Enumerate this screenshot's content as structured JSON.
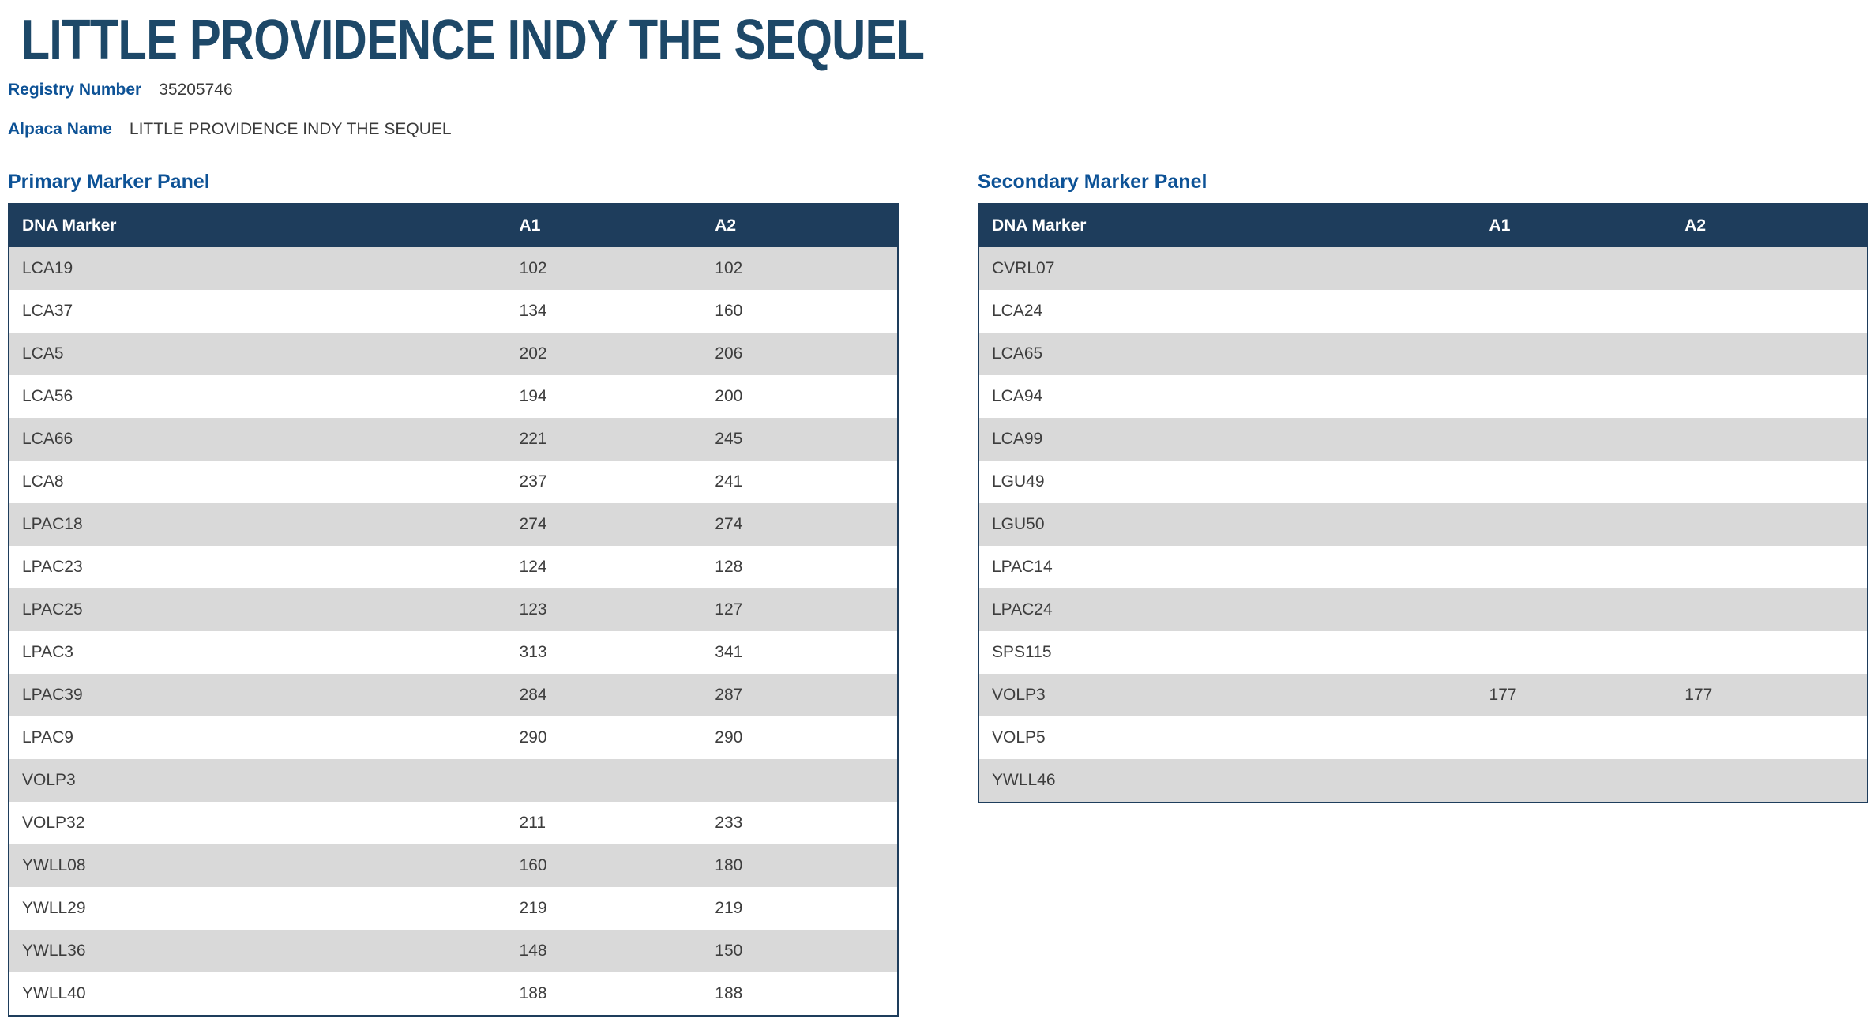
{
  "page": {
    "title": "LITTLE PROVIDENCE INDY THE SEQUEL"
  },
  "fields": [
    {
      "label": "Registry Number",
      "value": "35205746"
    },
    {
      "label": "Alpaca Name",
      "value": "LITTLE PROVIDENCE INDY THE SEQUEL"
    }
  ],
  "colors": {
    "table_header_navy": "#1e3d5c",
    "heading_blue": "#0d5296",
    "title_navy": "#1d4868",
    "row_alt_gray": "#d9d9d9"
  },
  "panels": [
    {
      "heading": "Primary Marker Panel",
      "columns": [
        "DNA Marker",
        "A1",
        "A2"
      ],
      "rows": [
        [
          "LCA19",
          "102",
          "102"
        ],
        [
          "LCA37",
          "134",
          "160"
        ],
        [
          "LCA5",
          "202",
          "206"
        ],
        [
          "LCA56",
          "194",
          "200"
        ],
        [
          "LCA66",
          "221",
          "245"
        ],
        [
          "LCA8",
          "237",
          "241"
        ],
        [
          "LPAC18",
          "274",
          "274"
        ],
        [
          "LPAC23",
          "124",
          "128"
        ],
        [
          "LPAC25",
          "123",
          "127"
        ],
        [
          "LPAC3",
          "313",
          "341"
        ],
        [
          "LPAC39",
          "284",
          "287"
        ],
        [
          "LPAC9",
          "290",
          "290"
        ],
        [
          "VOLP3",
          "",
          ""
        ],
        [
          "VOLP32",
          "211",
          "233"
        ],
        [
          "YWLL08",
          "160",
          "180"
        ],
        [
          "YWLL29",
          "219",
          "219"
        ],
        [
          "YWLL36",
          "148",
          "150"
        ],
        [
          "YWLL40",
          "188",
          "188"
        ]
      ]
    },
    {
      "heading": "Secondary Marker Panel",
      "columns": [
        "DNA Marker",
        "A1",
        "A2"
      ],
      "rows": [
        [
          "CVRL07",
          "",
          ""
        ],
        [
          "LCA24",
          "",
          ""
        ],
        [
          "LCA65",
          "",
          ""
        ],
        [
          "LCA94",
          "",
          ""
        ],
        [
          "LCA99",
          "",
          ""
        ],
        [
          "LGU49",
          "",
          ""
        ],
        [
          "LGU50",
          "",
          ""
        ],
        [
          "LPAC14",
          "",
          ""
        ],
        [
          "LPAC24",
          "",
          ""
        ],
        [
          "SPS115",
          "",
          ""
        ],
        [
          "VOLP3",
          "177",
          "177"
        ],
        [
          "VOLP5",
          "",
          ""
        ],
        [
          "YWLL46",
          "",
          ""
        ]
      ]
    }
  ]
}
